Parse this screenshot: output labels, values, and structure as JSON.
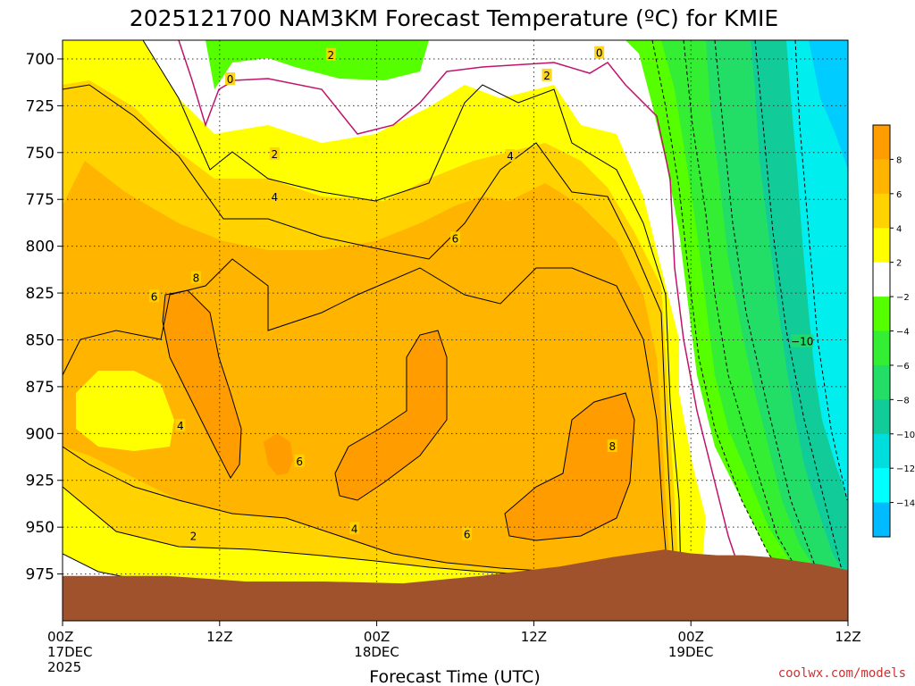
{
  "chart_data": {
    "type": "heatmap",
    "title": "2025121700 NAM3KM Forecast Temperature (ºC) for KMIE",
    "xlabel": "Forecast Time (UTC)",
    "ylabel": "",
    "y_axis": {
      "unit": "hPa",
      "ticks": [
        700,
        725,
        750,
        775,
        800,
        825,
        850,
        875,
        900,
        925,
        950,
        975
      ],
      "range": [
        690,
        1000
      ],
      "reversed": true
    },
    "x_axis": {
      "range_hours": [
        0,
        60
      ],
      "ticks": [
        {
          "hour": 0,
          "lines": [
            "00Z",
            "17DEC",
            "2025"
          ]
        },
        {
          "hour": 12,
          "lines": [
            "12Z"
          ]
        },
        {
          "hour": 24,
          "lines": [
            "00Z",
            "18DEC"
          ]
        },
        {
          "hour": 36,
          "lines": [
            "12Z"
          ]
        },
        {
          "hour": 48,
          "lines": [
            "00Z",
            "19DEC"
          ]
        },
        {
          "hour": 60,
          "lines": [
            "12Z"
          ]
        }
      ]
    },
    "grid": true,
    "colorbar": {
      "placement": "right",
      "labels": [
        "8",
        "6",
        "4",
        "2",
        "−2",
        "−4",
        "−6",
        "−8",
        "−10",
        "−12",
        "−14"
      ],
      "colors": [
        "#ff9c00",
        "#ffb400",
        "#ffd200",
        "#ffff00",
        "#ffffff",
        "#55ff00",
        "#33ee33",
        "#22dd66",
        "#11cc99",
        "#00dddd",
        "#00ffff",
        "#00bbff"
      ]
    },
    "contour_labels": [
      {
        "text": "2",
        "hour": 20.5,
        "p": 698
      },
      {
        "text": "0",
        "hour": 12.8,
        "p": 711
      },
      {
        "text": "0",
        "hour": 41.0,
        "p": 697
      },
      {
        "text": "2",
        "hour": 37.0,
        "p": 709
      },
      {
        "text": "2",
        "hour": 16.2,
        "p": 751
      },
      {
        "text": "4",
        "hour": 16.2,
        "p": 774
      },
      {
        "text": "4",
        "hour": 34.2,
        "p": 752
      },
      {
        "text": "6",
        "hour": 30.0,
        "p": 796
      },
      {
        "text": "8",
        "hour": 10.2,
        "p": 817
      },
      {
        "text": "6",
        "hour": 7.0,
        "p": 827
      },
      {
        "text": "4",
        "hour": 9.0,
        "p": 896
      },
      {
        "text": "6",
        "hour": 18.1,
        "p": 915
      },
      {
        "text": "8",
        "hour": 42.0,
        "p": 907
      },
      {
        "text": "4",
        "hour": 22.3,
        "p": 951
      },
      {
        "text": "6",
        "hour": 30.9,
        "p": 954
      },
      {
        "text": "2",
        "hour": 10.0,
        "p": 955
      },
      {
        "text": "−10",
        "hour": 56.5,
        "p": 851
      }
    ],
    "terrain": {
      "color": "#a0522d",
      "surface_pressure_by_hour": [
        [
          0,
          976
        ],
        [
          8,
          976
        ],
        [
          14,
          979
        ],
        [
          20,
          979
        ],
        [
          26,
          980
        ],
        [
          32,
          976
        ],
        [
          38,
          971
        ],
        [
          42,
          966
        ],
        [
          46,
          962
        ],
        [
          48,
          964
        ],
        [
          50,
          965
        ],
        [
          52,
          965
        ],
        [
          54,
          966
        ],
        [
          58,
          970
        ],
        [
          60,
          973
        ]
      ]
    },
    "note_credit": "coolwx.com/models"
  },
  "credit": "coolwx.com/models"
}
